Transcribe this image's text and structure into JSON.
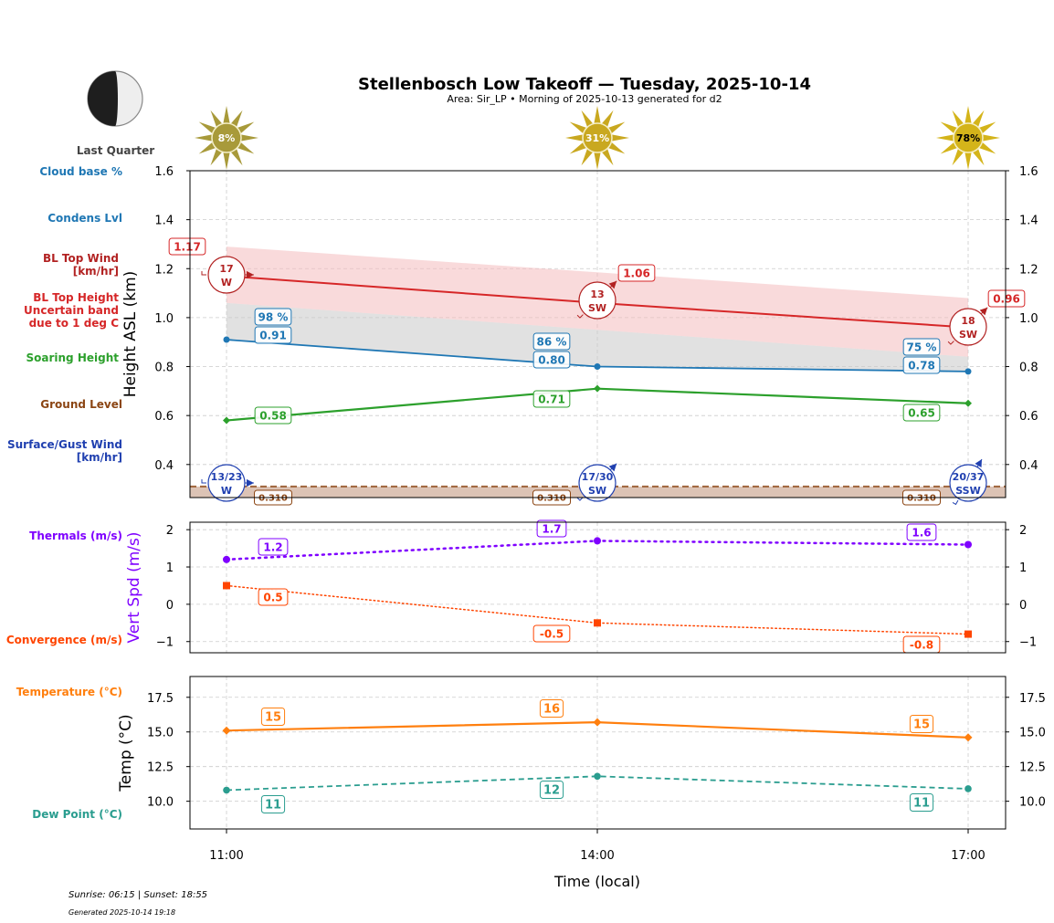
{
  "header": {
    "title": "Stellenbosch Low Takeoff — Tuesday, 2025-10-14",
    "subtitle": "Area: Sir_LP • Morning of 2025-10-13 generated for d2",
    "moon_phase": "Last Quarter",
    "moon_icon": "moon-last-quarter-icon"
  },
  "footer": {
    "sun_times": "Sunrise: 06:15 | Sunset: 18:55",
    "generated": "Generated 2025-10-14 19:18"
  },
  "side_labels": {
    "cloud_base": "Cloud base %",
    "condens": "Condens Lvl",
    "bl_top_wind": "BL Top Wind\n[km/hr]",
    "bl_top_height": "BL Top Height\nUncertain band\ndue to 1 deg C",
    "soaring": "Soaring Height",
    "ground": "Ground Level",
    "surface_wind": "Surface/Gust Wind\n[km/hr]",
    "thermals": "Thermals (m/s)",
    "convergence": "Convergence (m/s)",
    "temperature": "Temperature (°C)",
    "dew_point": "Dew Point (°C)"
  },
  "colors": {
    "cloud": "#1f77b4",
    "bl": "#d62728",
    "bl_band": "#f4b6b8",
    "cloud_band": "#c8c8c8",
    "soaring": "#2ca02c",
    "ground": "#8b4513",
    "ground_fill": "#dcc3b5",
    "surface_wind": "#2040b0",
    "thermals": "#7f00ff",
    "convergence": "#ff4500",
    "temperature": "#ff7f0e",
    "dew_point": "#2a9d8f",
    "sun_low": "#a89a3a",
    "sun_mid": "#c9a820",
    "sun_high": "#d4b41a"
  },
  "chart_data": [
    {
      "type": "line",
      "panel": "height",
      "ylabel": "Height ASL (km)",
      "ylim": [
        0.265,
        1.6
      ],
      "yticks": [
        "1.6",
        "1.4",
        "1.2",
        "1.0",
        "0.8",
        "0.6",
        "0.4"
      ],
      "ytick_values": [
        1.6,
        1.4,
        1.2,
        1.0,
        0.8,
        0.6,
        0.4
      ],
      "grid": true,
      "x": [
        "11:00",
        "14:00",
        "17:00"
      ],
      "sun_cover_pct": [
        "8%",
        "31%",
        "78%"
      ],
      "series": [
        {
          "name": "BL Top Height",
          "values": [
            1.17,
            1.06,
            0.96
          ],
          "labels": [
            "1.17",
            "1.06",
            "0.96"
          ]
        },
        {
          "name": "BL Top Uncertain band upper",
          "values": [
            1.29,
            1.185,
            1.08
          ]
        },
        {
          "name": "BL Top Uncertain band lower",
          "values": [
            1.06,
            0.95,
            0.84
          ]
        },
        {
          "name": "Condens Lvl",
          "values": [
            0.91,
            0.8,
            0.78
          ],
          "labels": [
            "0.91",
            "0.80",
            "0.78"
          ]
        },
        {
          "name": "Cloud base %",
          "values": [
            98,
            86,
            75
          ],
          "labels": [
            "98 %",
            "86 %",
            "75 %"
          ]
        },
        {
          "name": "Soaring Height",
          "values": [
            0.58,
            0.71,
            0.65
          ],
          "labels": [
            "0.58",
            "0.71",
            "0.65"
          ]
        },
        {
          "name": "Ground Level",
          "values": [
            0.31,
            0.31,
            0.31
          ],
          "labels": [
            "0.310",
            "0.310",
            "0.310"
          ]
        }
      ],
      "bl_wind": [
        {
          "speed": "17",
          "dir": "W"
        },
        {
          "speed": "13",
          "dir": "SW"
        },
        {
          "speed": "18",
          "dir": "SW"
        }
      ],
      "surface_wind": [
        {
          "speed": "13/23",
          "dir": "W"
        },
        {
          "speed": "17/30",
          "dir": "SW"
        },
        {
          "speed": "20/37",
          "dir": "SSW"
        }
      ]
    },
    {
      "type": "line",
      "panel": "vertical-speed",
      "ylabel": "Vert Spd (m/s)",
      "ylim": [
        -1.3,
        2.2
      ],
      "yticks": [
        "2",
        "1",
        "0",
        "−1"
      ],
      "ytick_values": [
        2,
        1,
        0,
        -1
      ],
      "grid": true,
      "x": [
        "11:00",
        "14:00",
        "17:00"
      ],
      "series": [
        {
          "name": "Thermals (m/s)",
          "values": [
            1.2,
            1.7,
            1.6
          ],
          "labels": [
            "1.2",
            "1.7",
            "1.6"
          ]
        },
        {
          "name": "Convergence (m/s)",
          "values": [
            0.5,
            -0.5,
            -0.8
          ],
          "labels": [
            "0.5",
            "-0.5",
            "-0.8"
          ]
        }
      ]
    },
    {
      "type": "line",
      "panel": "temperature",
      "ylabel": "Temp (°C)",
      "xlabel": "Time (local)",
      "ylim": [
        8.0,
        19.0
      ],
      "yticks": [
        "17.5",
        "15.0",
        "12.5",
        "10.0"
      ],
      "ytick_values": [
        17.5,
        15.0,
        12.5,
        10.0
      ],
      "grid": true,
      "x": [
        "11:00",
        "14:00",
        "17:00"
      ],
      "series": [
        {
          "name": "Temperature (°C)",
          "values": [
            15.1,
            15.7,
            14.6
          ],
          "labels": [
            "15",
            "16",
            "15"
          ]
        },
        {
          "name": "Dew Point (°C)",
          "values": [
            10.8,
            11.8,
            10.9
          ],
          "labels": [
            "11",
            "12",
            "11"
          ]
        }
      ]
    }
  ]
}
